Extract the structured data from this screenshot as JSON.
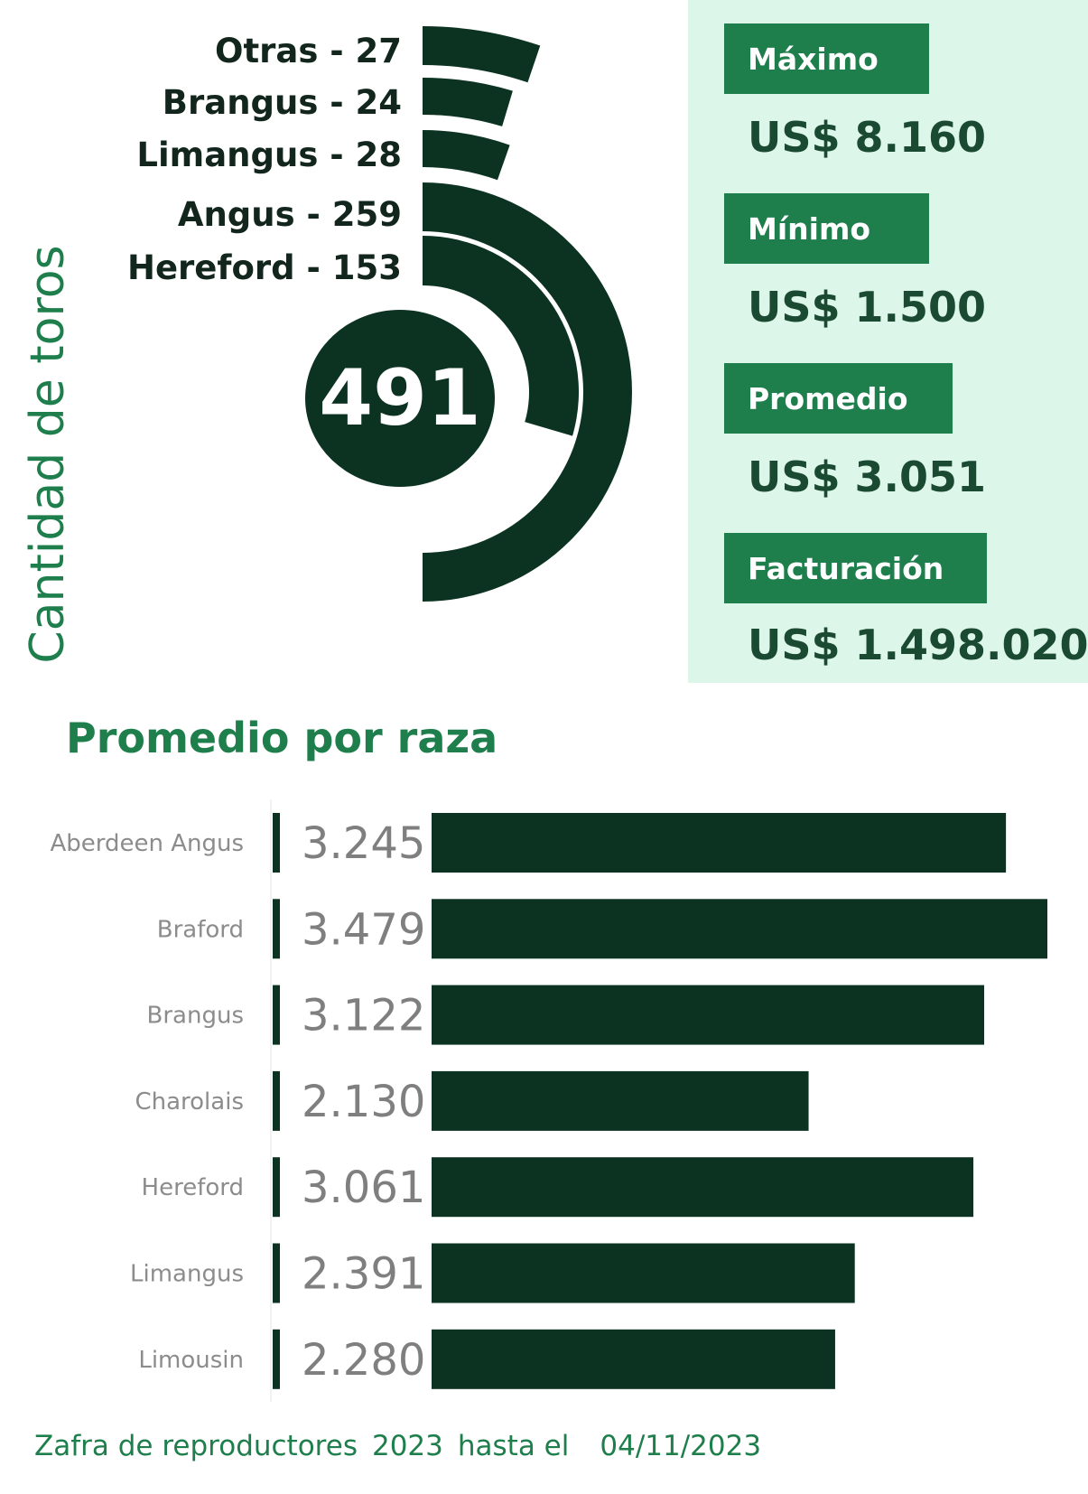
{
  "chart_data": [
    {
      "type": "radial-bar",
      "ylabel": "Cantidad de toros",
      "total": "491",
      "categories": [
        "Otras",
        "Brangus",
        "Limangus",
        "Angus",
        "Hereford"
      ],
      "values": [
        27,
        24,
        28,
        259,
        153
      ],
      "labels": [
        "Otras - 27",
        "Brangus - 24",
        "Limangus - 28",
        "Angus - 259",
        "Hereford - 153"
      ]
    },
    {
      "type": "bar",
      "orientation": "horizontal",
      "title": "Promedio por raza",
      "categories": [
        "Aberdeen Angus",
        "Braford",
        "Brangus",
        "Charolais",
        "Hereford",
        "Limangus",
        "Limousin"
      ],
      "values": [
        3245,
        3479,
        3122,
        2130,
        3061,
        2391,
        2280
      ],
      "value_labels": [
        "3.245",
        "3.479",
        "3.122",
        "2.130",
        "3.061",
        "2.391",
        "2.280"
      ],
      "xlim": [
        0,
        3479
      ]
    }
  ],
  "stats": [
    {
      "label": "Máximo",
      "value": "US$ 8.160"
    },
    {
      "label": "Mínimo",
      "value": "US$ 1.500"
    },
    {
      "label": "Promedio",
      "value": "US$ 3.051"
    },
    {
      "label": "Facturación",
      "value": "US$ 1.498.020"
    }
  ],
  "footer": {
    "text1": "Zafra de reproductores",
    "year": "2023",
    "text2": "hasta el",
    "date": "04/11/2023"
  },
  "colors": {
    "dark_green": "#0c3322",
    "accent_green": "#1e7e4c",
    "panel_bg": "#ddf6ea",
    "category_gray": "#8c8c8c",
    "value_gray": "#7f7f7f"
  }
}
